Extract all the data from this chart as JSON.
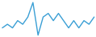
{
  "y_values": [
    3,
    4,
    3,
    5,
    4,
    6,
    10,
    1,
    6,
    7,
    5,
    7,
    5,
    3,
    5,
    3,
    5,
    4,
    6
  ],
  "line_color": "#3a9fd5",
  "background_color": "#ffffff",
  "linewidth": 1.0
}
